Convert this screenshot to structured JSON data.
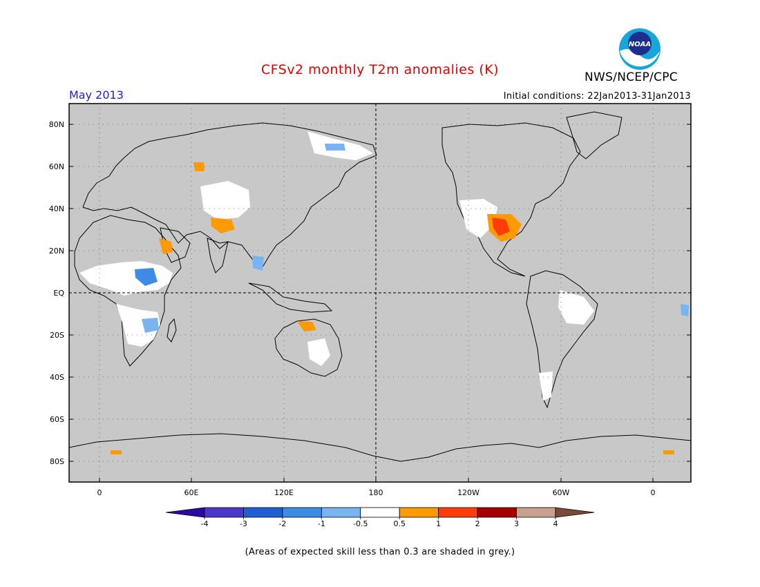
{
  "header": {
    "title": "CFSv2 monthly T2m anomalies (K)",
    "agency": "NWS/NCEP/CPC",
    "month": "May 2013",
    "initial_conditions": "Initial conditions: 22Jan2013-31Jan2013"
  },
  "logo": {
    "text": "NOAA"
  },
  "map": {
    "background_color": "#c8c8c8",
    "lat_labels": [
      "80N",
      "60N",
      "40N",
      "20N",
      "EQ",
      "20S",
      "40S",
      "60S",
      "80S"
    ],
    "lon_labels": [
      "0",
      "60E",
      "120E",
      "180",
      "120W",
      "60W",
      "0"
    ]
  },
  "colorbar": {
    "colors": [
      "#2a0aa0",
      "#4a38c8",
      "#1e5fd2",
      "#3c8ce6",
      "#7ab4f0",
      "#ffffff",
      "#ff9a00",
      "#ff3c0a",
      "#a50000",
      "#c8a090",
      "#7a4b38"
    ],
    "tick_labels": [
      "-4",
      "-3",
      "-2",
      "-1",
      "-0.5",
      "0.5",
      "1",
      "2",
      "3",
      "4"
    ]
  },
  "footnote": "(Areas of expected skill less than 0.3 are shaded in grey.)"
}
